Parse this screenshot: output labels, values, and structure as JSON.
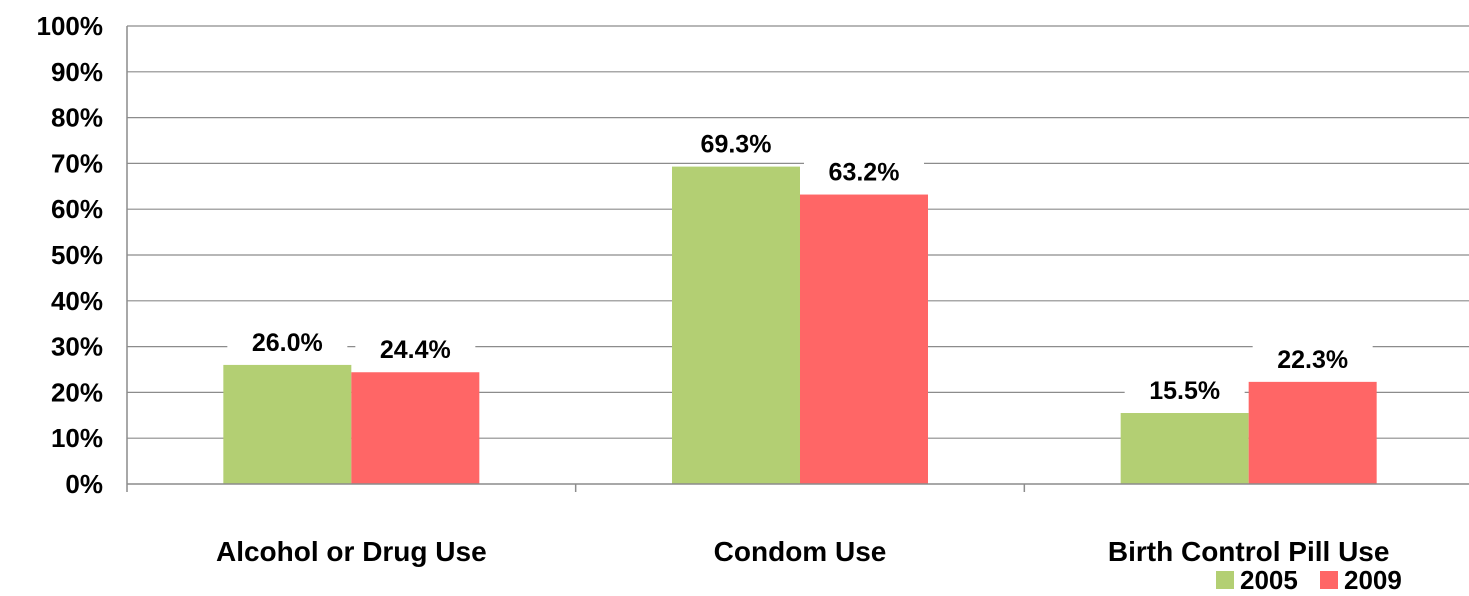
{
  "chart_data": {
    "type": "bar",
    "categories": [
      "Alcohol or Drug Use",
      "Condom Use",
      "Birth Control Pill Use"
    ],
    "series": [
      {
        "name": "2005",
        "values": [
          26.0,
          69.3,
          15.5
        ],
        "labels": [
          "26.0%",
          "69.3%",
          "15.5%"
        ],
        "color": "#b3cf73"
      },
      {
        "name": "2009",
        "values": [
          24.4,
          63.2,
          22.3
        ],
        "labels": [
          "24.4%",
          "63.2%",
          "22.3%"
        ],
        "color": "#ff6666"
      }
    ],
    "ylim": [
      0,
      100
    ],
    "yticks": [
      "0%",
      "10%",
      "20%",
      "30%",
      "40%",
      "50%",
      "60%",
      "70%",
      "80%",
      "90%",
      "100%"
    ],
    "grid": true,
    "legend_position": "bottom-right",
    "title": "",
    "xlabel": "",
    "ylabel": ""
  }
}
